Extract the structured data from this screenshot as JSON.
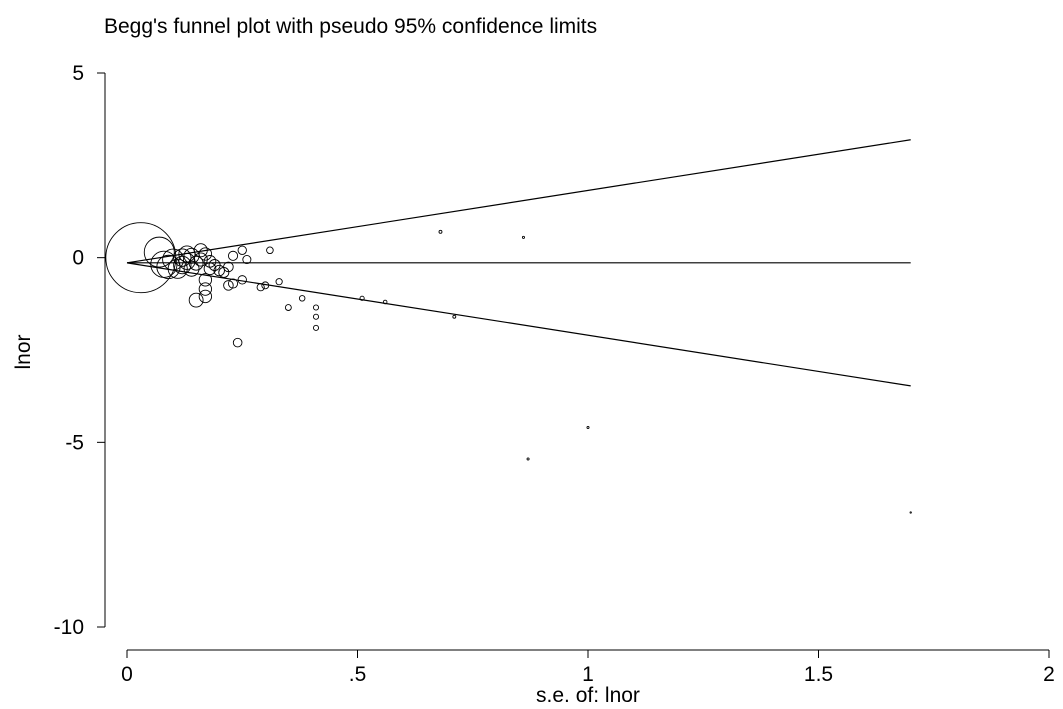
{
  "chart_data": {
    "type": "scatter",
    "title": "Begg's funnel plot with pseudo 95% confidence limits",
    "xlabel": "s.e. of: lnor",
    "ylabel": "lnor",
    "xlim": [
      0,
      2
    ],
    "ylim": [
      -10,
      5
    ],
    "x_ticks": [
      {
        "value": 0,
        "label": "0"
      },
      {
        "value": 0.5,
        "label": ".5"
      },
      {
        "value": 1,
        "label": "1"
      },
      {
        "value": 1.5,
        "label": "1.5"
      },
      {
        "value": 2,
        "label": "2"
      }
    ],
    "y_ticks": [
      {
        "value": 5,
        "label": "5"
      },
      {
        "value": 0,
        "label": "0"
      },
      {
        "value": -5,
        "label": "-5"
      },
      {
        "value": -10,
        "label": "-10"
      }
    ],
    "grid": false,
    "pooled_estimate": -0.14,
    "confidence_limits": {
      "center": -0.14,
      "se_range": [
        0,
        1.7
      ],
      "multiplier": 1.96
    },
    "points": [
      {
        "se": 0.03,
        "lnor": 0.0,
        "w": 1111
      },
      {
        "se": 0.07,
        "lnor": 0.15,
        "w": 204
      },
      {
        "se": 0.08,
        "lnor": -0.18,
        "w": 156
      },
      {
        "se": 0.09,
        "lnor": -0.25,
        "w": 123
      },
      {
        "se": 0.1,
        "lnor": -0.05,
        "w": 100
      },
      {
        "se": 0.11,
        "lnor": -0.3,
        "w": 83
      },
      {
        "se": 0.12,
        "lnor": 0.0,
        "w": 69
      },
      {
        "se": 0.12,
        "lnor": -0.2,
        "w": 69
      },
      {
        "se": 0.13,
        "lnor": 0.1,
        "w": 59
      },
      {
        "se": 0.13,
        "lnor": -0.1,
        "w": 59
      },
      {
        "se": 0.14,
        "lnor": -0.3,
        "w": 51
      },
      {
        "se": 0.14,
        "lnor": 0.05,
        "w": 51
      },
      {
        "se": 0.15,
        "lnor": -0.15,
        "w": 44
      },
      {
        "se": 0.15,
        "lnor": -1.15,
        "w": 44
      },
      {
        "se": 0.16,
        "lnor": 0.2,
        "w": 39
      },
      {
        "se": 0.16,
        "lnor": -0.05,
        "w": 39
      },
      {
        "se": 0.17,
        "lnor": 0.1,
        "w": 35
      },
      {
        "se": 0.17,
        "lnor": -0.6,
        "w": 35
      },
      {
        "se": 0.17,
        "lnor": -0.85,
        "w": 35
      },
      {
        "se": 0.17,
        "lnor": -1.05,
        "w": 35
      },
      {
        "se": 0.18,
        "lnor": -0.1,
        "w": 31
      },
      {
        "se": 0.18,
        "lnor": -0.3,
        "w": 31
      },
      {
        "se": 0.19,
        "lnor": -0.2,
        "w": 28
      },
      {
        "se": 0.2,
        "lnor": -0.35,
        "w": 25
      },
      {
        "se": 0.21,
        "lnor": -0.4,
        "w": 23
      },
      {
        "se": 0.22,
        "lnor": -0.25,
        "w": 21
      },
      {
        "se": 0.22,
        "lnor": -0.75,
        "w": 21
      },
      {
        "se": 0.23,
        "lnor": 0.05,
        "w": 19
      },
      {
        "se": 0.23,
        "lnor": -0.7,
        "w": 19
      },
      {
        "se": 0.24,
        "lnor": -2.3,
        "w": 17
      },
      {
        "se": 0.25,
        "lnor": 0.2,
        "w": 16
      },
      {
        "se": 0.25,
        "lnor": -0.6,
        "w": 16
      },
      {
        "se": 0.26,
        "lnor": -0.05,
        "w": 15
      },
      {
        "se": 0.29,
        "lnor": -0.8,
        "w": 12
      },
      {
        "se": 0.3,
        "lnor": -0.75,
        "w": 11
      },
      {
        "se": 0.31,
        "lnor": 0.2,
        "w": 10
      },
      {
        "se": 0.33,
        "lnor": -0.65,
        "w": 9
      },
      {
        "se": 0.35,
        "lnor": -1.35,
        "w": 8
      },
      {
        "se": 0.38,
        "lnor": -1.1,
        "w": 7
      },
      {
        "se": 0.41,
        "lnor": -1.35,
        "w": 6
      },
      {
        "se": 0.41,
        "lnor": -1.6,
        "w": 6
      },
      {
        "se": 0.41,
        "lnor": -1.9,
        "w": 6
      },
      {
        "se": 0.51,
        "lnor": -1.1,
        "w": 4
      },
      {
        "se": 0.56,
        "lnor": -1.2,
        "w": 3
      },
      {
        "se": 0.68,
        "lnor": 0.7,
        "w": 2
      },
      {
        "se": 0.71,
        "lnor": -1.6,
        "w": 2
      },
      {
        "se": 0.86,
        "lnor": 0.55,
        "w": 1
      },
      {
        "se": 0.87,
        "lnor": -5.45,
        "w": 1
      },
      {
        "se": 1.0,
        "lnor": -4.6,
        "w": 1
      },
      {
        "se": 1.7,
        "lnor": -6.9,
        "w": 0.35
      }
    ]
  }
}
